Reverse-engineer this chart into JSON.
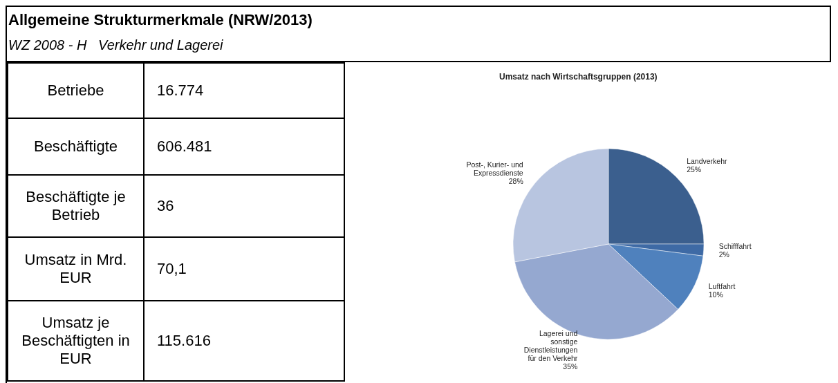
{
  "chart_data": [
    {
      "type": "other",
      "title": "Allgemeine Strukturmerkmale (NRW/2013)",
      "subtitle": "WZ 2008 - H   Verkehr und Lagerei",
      "categories": [
        "Betriebe",
        "Beschäftigte",
        "Beschäftigte je Betrieb",
        "Umsatz in Mrd. EUR",
        "Umsatz je Beschäftigten in EUR"
      ],
      "value_labels": [
        "16.774",
        "606.481",
        "36",
        "70,1",
        "115.616"
      ]
    },
    {
      "type": "pie",
      "title": "Umsatz nach Wirtschaftsgruppen (2013)",
      "categories": [
        "Landverkehr",
        "Schifffahrt",
        "Luftfahrt",
        "Lagerei und sonstige Dienstleistungen für den Verkehr",
        "Post-, Kurier- und Expressdienste"
      ],
      "values": [
        25,
        2,
        10,
        35,
        28
      ],
      "colors": [
        "#3b5f8e",
        "#3e6aa5",
        "#4f81bd",
        "#95a8d0",
        "#b8c5e0"
      ],
      "value_labels": [
        "25%",
        "2%",
        "10%",
        "35%",
        "28%"
      ]
    }
  ]
}
